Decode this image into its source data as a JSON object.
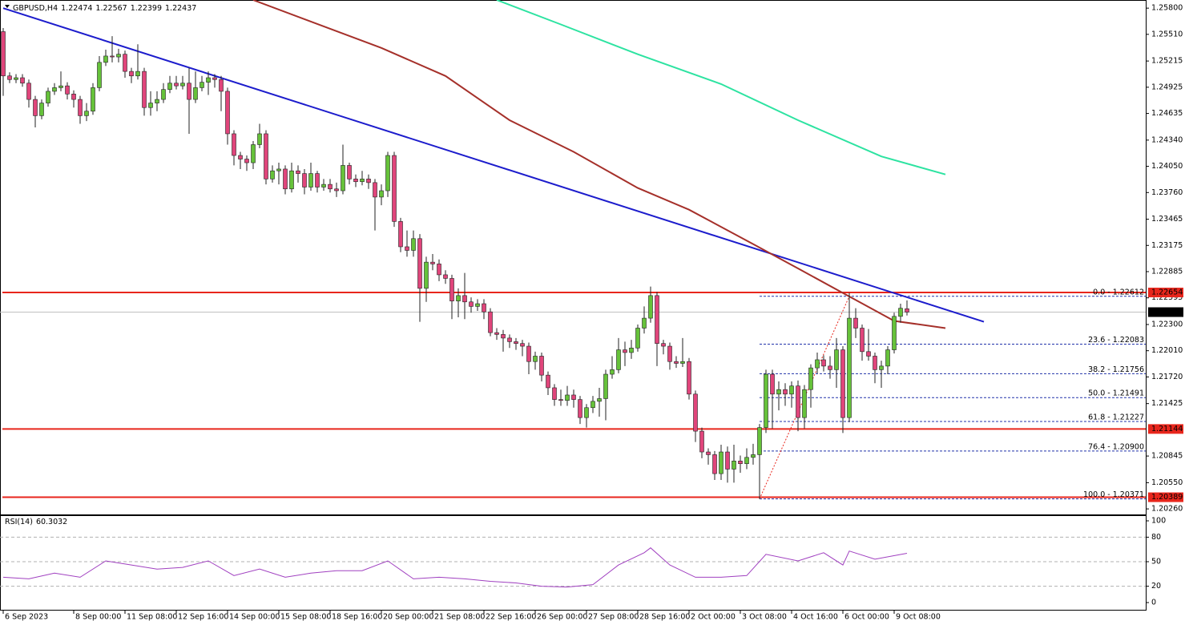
{
  "chart_data": [
    {
      "type": "candlestick",
      "symbol": "GBPUSD,H4",
      "up_color": "#66c23a",
      "down_color": "#e0457b",
      "xlim": [
        -0.5,
        178.25
      ],
      "ylim": [
        1.2019,
        1.2589
      ],
      "yticks": [
        {
          "value": 1.258,
          "label": "1.25800"
        },
        {
          "value": 1.2551,
          "label": "1.25510"
        },
        {
          "value": 1.25215,
          "label": "1.25215"
        },
        {
          "value": 1.24925,
          "label": "1.24925"
        },
        {
          "value": 1.24635,
          "label": "1.24635"
        },
        {
          "value": 1.2434,
          "label": "1.24340"
        },
        {
          "value": 1.2405,
          "label": "1.24050"
        },
        {
          "value": 1.2376,
          "label": "1.23760"
        },
        {
          "value": 1.23465,
          "label": "1.23465"
        },
        {
          "value": 1.23175,
          "label": "1.23175"
        },
        {
          "value": 1.22885,
          "label": "1.22885"
        },
        {
          "value": 1.22595,
          "label": "1.22595"
        },
        {
          "value": 1.223,
          "label": "1.22300"
        },
        {
          "value": 1.2201,
          "label": "1.22010"
        },
        {
          "value": 1.2172,
          "label": "1.21720"
        },
        {
          "value": 1.21425,
          "label": "1.21425"
        },
        {
          "value": 1.20845,
          "label": "1.20845"
        },
        {
          "value": 1.2055,
          "label": "1.20550"
        },
        {
          "value": 1.2026,
          "label": "1.20260"
        }
      ],
      "xticks": [
        {
          "value": 0,
          "label": "6 Sep 2023"
        },
        {
          "value": 11,
          "label": "8 Sep 00:00"
        },
        {
          "value": 19,
          "label": "11 Sep 08:00"
        },
        {
          "value": 27,
          "label": "12 Sep 16:00"
        },
        {
          "value": 35,
          "label": "14 Sep 00:00"
        },
        {
          "value": 43,
          "label": "15 Sep 08:00"
        },
        {
          "value": 51,
          "label": "18 Sep 16:00"
        },
        {
          "value": 59,
          "label": "20 Sep 00:00"
        },
        {
          "value": 67,
          "label": "21 Sep 08:00"
        },
        {
          "value": 75,
          "label": "22 Sep 16:00"
        },
        {
          "value": 83,
          "label": "26 Sep 00:00"
        },
        {
          "value": 91,
          "label": "27 Sep 08:00"
        },
        {
          "value": 99,
          "label": "28 Sep 16:00"
        },
        {
          "value": 107,
          "label": "2 Oct 00:00"
        },
        {
          "value": 115,
          "label": "3 Oct 08:00"
        },
        {
          "value": 123,
          "label": "4 Oct 16:00"
        },
        {
          "value": 131,
          "label": "6 Oct 00:00"
        },
        {
          "value": 139,
          "label": "9 Oct 08:00"
        }
      ],
      "candles": [
        [
          1.2554,
          1.2558,
          1.2483,
          1.2505
        ],
        [
          1.2505,
          1.2509,
          1.2497,
          1.2501
        ],
        [
          1.2501,
          1.2507,
          1.2497,
          1.2503
        ],
        [
          1.2503,
          1.2507,
          1.2493,
          1.2497
        ],
        [
          1.2497,
          1.2501,
          1.247,
          1.2479
        ],
        [
          1.2479,
          1.2483,
          1.2448,
          1.2461
        ],
        [
          1.2461,
          1.2479,
          1.2457,
          1.2475
        ],
        [
          1.2475,
          1.2492,
          1.2471,
          1.2488
        ],
        [
          1.2488,
          1.2497,
          1.2484,
          1.2492
        ],
        [
          1.2492,
          1.251,
          1.2488,
          1.2494
        ],
        [
          1.2494,
          1.2498,
          1.2479,
          1.2485
        ],
        [
          1.2485,
          1.2489,
          1.247,
          1.2479
        ],
        [
          1.2479,
          1.2483,
          1.2452,
          1.2461
        ],
        [
          1.2461,
          1.2475,
          1.2455,
          1.2466
        ],
        [
          1.2466,
          1.2497,
          1.2462,
          1.2492
        ],
        [
          1.2492,
          1.2527,
          1.2488,
          1.252
        ],
        [
          1.252,
          1.2534,
          1.2516,
          1.2527
        ],
        [
          1.2527,
          1.2549,
          1.252,
          1.2526
        ],
        [
          1.2526,
          1.2535,
          1.252,
          1.2529
        ],
        [
          1.2529,
          1.2533,
          1.2503,
          1.251
        ],
        [
          1.251,
          1.2514,
          1.2497,
          1.2505
        ],
        [
          1.2505,
          1.254,
          1.2501,
          1.251
        ],
        [
          1.251,
          1.2514,
          1.2461,
          1.247
        ],
        [
          1.247,
          1.2488,
          1.2461,
          1.2475
        ],
        [
          1.2475,
          1.2488,
          1.2466,
          1.2479
        ],
        [
          1.2479,
          1.2497,
          1.2475,
          1.249
        ],
        [
          1.249,
          1.2505,
          1.2486,
          1.2497
        ],
        [
          1.2497,
          1.2505,
          1.249,
          1.2494
        ],
        [
          1.2494,
          1.2505,
          1.249,
          1.2497
        ],
        [
          1.2497,
          1.2514,
          1.2441,
          1.2479
        ],
        [
          1.2479,
          1.251,
          1.2475,
          1.2492
        ],
        [
          1.2492,
          1.2505,
          1.2488,
          1.2498
        ],
        [
          1.2498,
          1.251,
          1.2484,
          1.2503
        ],
        [
          1.2503,
          1.2507,
          1.2492,
          1.2501
        ],
        [
          1.2501,
          1.2505,
          1.2466,
          1.2488
        ],
        [
          1.2488,
          1.2492,
          1.2429,
          1.2441
        ],
        [
          1.2441,
          1.2445,
          1.2406,
          1.2417
        ],
        [
          1.2417,
          1.2421,
          1.2402,
          1.2413
        ],
        [
          1.2413,
          1.2417,
          1.24,
          1.2409
        ],
        [
          1.2409,
          1.2433,
          1.2402,
          1.2429
        ],
        [
          1.2429,
          1.2452,
          1.2425,
          1.2441
        ],
        [
          1.2441,
          1.2445,
          1.2385,
          1.2391
        ],
        [
          1.2391,
          1.2406,
          1.2387,
          1.24
        ],
        [
          1.24,
          1.2409,
          1.2385,
          1.2402
        ],
        [
          1.2402,
          1.2406,
          1.2374,
          1.238
        ],
        [
          1.238,
          1.2409,
          1.2376,
          1.24
        ],
        [
          1.24,
          1.2406,
          1.2387,
          1.2397
        ],
        [
          1.2397,
          1.2402,
          1.2374,
          1.2382
        ],
        [
          1.2382,
          1.2409,
          1.2378,
          1.2397
        ],
        [
          1.2397,
          1.24,
          1.2376,
          1.2382
        ],
        [
          1.2382,
          1.2391,
          1.2378,
          1.2385
        ],
        [
          1.2385,
          1.2391,
          1.2376,
          1.238
        ],
        [
          1.238,
          1.2387,
          1.2371,
          1.2378
        ],
        [
          1.2378,
          1.2429,
          1.2374,
          1.2406
        ],
        [
          1.2406,
          1.2409,
          1.2385,
          1.2391
        ],
        [
          1.2391,
          1.2396,
          1.2382,
          1.2388
        ],
        [
          1.2388,
          1.24,
          1.2384,
          1.2391
        ],
        [
          1.2391,
          1.2396,
          1.238,
          1.2387
        ],
        [
          1.2387,
          1.2391,
          1.2334,
          1.2371
        ],
        [
          1.2371,
          1.2385,
          1.2362,
          1.2378
        ],
        [
          1.2378,
          1.2421,
          1.2371,
          1.2417
        ],
        [
          1.2417,
          1.2421,
          1.2338,
          1.2344
        ],
        [
          1.2344,
          1.2348,
          1.231,
          1.2316
        ],
        [
          1.2316,
          1.2334,
          1.2305,
          1.2312
        ],
        [
          1.2312,
          1.2334,
          1.2305,
          1.2325
        ],
        [
          1.2325,
          1.233,
          1.2233,
          1.227
        ],
        [
          1.227,
          1.2305,
          1.2255,
          1.2299
        ],
        [
          1.2299,
          1.2308,
          1.229,
          1.2297
        ],
        [
          1.2297,
          1.2302,
          1.2278,
          1.2285
        ],
        [
          1.2285,
          1.229,
          1.2275,
          1.2281
        ],
        [
          1.2281,
          1.2285,
          1.2236,
          1.2256
        ],
        [
          1.2256,
          1.227,
          1.2238,
          1.2262
        ],
        [
          1.2262,
          1.2287,
          1.2236,
          1.2255
        ],
        [
          1.2255,
          1.226,
          1.2243,
          1.225
        ],
        [
          1.225,
          1.2258,
          1.2245,
          1.2253
        ],
        [
          1.2253,
          1.2258,
          1.2236,
          1.2244
        ],
        [
          1.2244,
          1.2248,
          1.2217,
          1.2221
        ],
        [
          1.2221,
          1.2226,
          1.2213,
          1.2219
        ],
        [
          1.2219,
          1.2224,
          1.22,
          1.2215
        ],
        [
          1.2215,
          1.2219,
          1.2204,
          1.2211
        ],
        [
          1.2211,
          1.2215,
          1.2202,
          1.2209
        ],
        [
          1.2209,
          1.2213,
          1.2195,
          1.2206
        ],
        [
          1.2206,
          1.221,
          1.2175,
          1.2189
        ],
        [
          1.2189,
          1.22,
          1.218,
          1.2195
        ],
        [
          1.2195,
          1.2199,
          1.2167,
          1.2174
        ],
        [
          1.2174,
          1.2178,
          1.2152,
          1.216
        ],
        [
          1.216,
          1.2164,
          1.214,
          1.2147
        ],
        [
          1.2147,
          1.2158,
          1.214,
          1.2146
        ],
        [
          1.2146,
          1.2162,
          1.214,
          1.2152
        ],
        [
          1.2152,
          1.2158,
          1.2138,
          1.2147
        ],
        [
          1.2147,
          1.2151,
          1.212,
          1.2127
        ],
        [
          1.2127,
          1.2142,
          1.2116,
          1.2138
        ],
        [
          1.2138,
          1.2151,
          1.2132,
          1.2145
        ],
        [
          1.2145,
          1.216,
          1.2128,
          1.2148
        ],
        [
          1.2148,
          1.218,
          1.2124,
          1.2175
        ],
        [
          1.2175,
          1.2195,
          1.217,
          1.218
        ],
        [
          1.218,
          1.2215,
          1.2176,
          1.2202
        ],
        [
          1.2202,
          1.2211,
          1.2184,
          1.2199
        ],
        [
          1.2199,
          1.2213,
          1.2192,
          1.2204
        ],
        [
          1.2204,
          1.223,
          1.22,
          1.2226
        ],
        [
          1.2226,
          1.225,
          1.222,
          1.2237
        ],
        [
          1.2237,
          1.2272,
          1.2232,
          1.2262
        ],
        [
          1.2262,
          1.2266,
          1.2184,
          1.2209
        ],
        [
          1.2209,
          1.2213,
          1.2197,
          1.2206
        ],
        [
          1.2206,
          1.221,
          1.218,
          1.2189
        ],
        [
          1.2189,
          1.2195,
          1.2182,
          1.2187
        ],
        [
          1.2187,
          1.2215,
          1.2183,
          1.2189
        ],
        [
          1.2189,
          1.2193,
          1.2147,
          1.2153
        ],
        [
          1.2153,
          1.2157,
          1.21,
          1.2112
        ],
        [
          1.2112,
          1.2116,
          1.2082,
          1.2089
        ],
        [
          1.2089,
          1.2093,
          1.2075,
          1.2086
        ],
        [
          1.2086,
          1.209,
          1.2058,
          1.2065
        ],
        [
          1.2065,
          1.2097,
          1.2058,
          1.2089
        ],
        [
          1.2089,
          1.2095,
          1.2055,
          1.207
        ],
        [
          1.207,
          1.2097,
          1.2055,
          1.2079
        ],
        [
          1.2079,
          1.2085,
          1.2066,
          1.2076
        ],
        [
          1.2076,
          1.2093,
          1.207,
          1.2083
        ],
        [
          1.2083,
          1.2098,
          1.2075,
          1.2086
        ],
        [
          1.2086,
          1.212,
          1.2037,
          1.2116
        ],
        [
          1.2116,
          1.218,
          1.211,
          1.2175
        ],
        [
          1.2175,
          1.218,
          1.2115,
          1.2153
        ],
        [
          1.2153,
          1.2167,
          1.2135,
          1.2158
        ],
        [
          1.2158,
          1.2165,
          1.214,
          1.2153
        ],
        [
          1.2153,
          1.2167,
          1.2138,
          1.2162
        ],
        [
          1.2162,
          1.2168,
          1.2112,
          1.2127
        ],
        [
          1.2127,
          1.2163,
          1.2115,
          1.2158
        ],
        [
          1.2158,
          1.2186,
          1.2138,
          1.2182
        ],
        [
          1.2182,
          1.2199,
          1.2176,
          1.2191
        ],
        [
          1.2191,
          1.2196,
          1.2178,
          1.2184
        ],
        [
          1.2184,
          1.2195,
          1.217,
          1.218
        ],
        [
          1.218,
          1.2215,
          1.216,
          1.2202
        ],
        [
          1.2202,
          1.2206,
          1.211,
          1.2127
        ],
        [
          1.2127,
          1.2265,
          1.2122,
          1.2237
        ],
        [
          1.2237,
          1.2248,
          1.2215,
          1.2226
        ],
        [
          1.2226,
          1.223,
          1.219,
          1.22
        ],
        [
          1.22,
          1.2225,
          1.219,
          1.2195
        ],
        [
          1.2195,
          1.2199,
          1.2165,
          1.218
        ],
        [
          1.218,
          1.219,
          1.216,
          1.2184
        ],
        [
          1.2184,
          1.2206,
          1.2175,
          1.2202
        ],
        [
          1.2202,
          1.2243,
          1.2198,
          1.2239
        ],
        [
          1.2239,
          1.2253,
          1.2232,
          1.2248
        ],
        [
          1.22474,
          1.22567,
          1.22399,
          1.22437
        ]
      ],
      "hlines": [
        {
          "value": 1.22654,
          "color": "#e8261c"
        },
        {
          "value": 1.21144,
          "color": "#e8261c"
        },
        {
          "value": 1.20389,
          "color": "#e8261c"
        }
      ],
      "fib": {
        "start": 118,
        "color": "#2233aa",
        "swing_color": "#e8261c",
        "levels": [
          {
            "value": 1.22612,
            "label": "0.0 - 1.22612"
          },
          {
            "value": 1.22083,
            "label": "23.6 - 1.22083"
          },
          {
            "value": 1.21756,
            "label": "38.2 - 1.21756"
          },
          {
            "value": 1.21491,
            "label": "50.0 - 1.21491"
          },
          {
            "value": 1.21227,
            "label": "61.8 - 1.21227"
          },
          {
            "value": 1.209,
            "label": "76.4 - 1.20900"
          },
          {
            "value": 1.20371,
            "label": "100.0 - 1.20371"
          }
        ]
      },
      "overlays": [
        {
          "color": "#1c1ccc",
          "x": [
            0,
            153
          ],
          "values": [
            1.258,
            1.2233
          ]
        },
        {
          "color": "#a5302a",
          "x": [
            39,
            59,
            69,
            79,
            89,
            99,
            107,
            117,
            124,
            132,
            139,
            147
          ],
          "values": [
            1.2589,
            1.2536,
            1.2505,
            1.2456,
            1.2421,
            1.2381,
            1.2357,
            1.2319,
            1.2292,
            1.2261,
            1.2234,
            1.2226
          ]
        },
        {
          "color": "#2de3a1",
          "x": [
            77,
            87,
            99,
            112,
            124,
            137,
            147
          ],
          "values": [
            1.2589,
            1.2562,
            1.2529,
            1.2496,
            1.2456,
            1.2416,
            1.2396
          ]
        }
      ]
    },
    {
      "type": "line",
      "name": "RSI(14)",
      "color": "#a040c0",
      "xlim": [
        -0.5,
        178.25
      ],
      "ylim": [
        0,
        100
      ],
      "yticks": [
        100,
        80,
        50,
        20,
        0
      ],
      "x": [
        0,
        4,
        8,
        12,
        16,
        20,
        24,
        28,
        32,
        36,
        40,
        44,
        48,
        52,
        56,
        60,
        64,
        68,
        72,
        76,
        80,
        84,
        88,
        92,
        96,
        100,
        101,
        104,
        108,
        112,
        116,
        119,
        124,
        128,
        131,
        132,
        136,
        141
      ],
      "values": [
        31,
        29,
        36,
        31,
        51,
        46,
        41,
        43,
        51,
        33,
        41,
        31,
        36,
        39,
        39,
        51,
        29,
        31,
        29,
        26,
        24,
        20,
        19,
        22,
        46,
        61,
        67,
        46,
        31,
        31,
        33,
        59,
        51,
        61,
        46,
        63,
        53,
        60.3032
      ]
    }
  ]
}
